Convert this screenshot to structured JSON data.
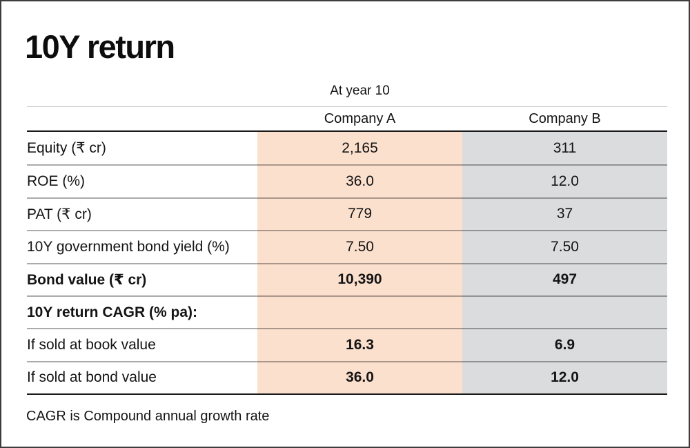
{
  "title": "10Y return",
  "table": {
    "super_header": "At year 10",
    "col_a_header": "Company A",
    "col_b_header": "Company B",
    "rows": [
      {
        "label": "Equity (₹ cr)",
        "a": "2,165",
        "b": "311"
      },
      {
        "label": "ROE (%)",
        "a": "36.0",
        "b": "12.0"
      },
      {
        "label": "PAT (₹ cr)",
        "a": "779",
        "b": "37"
      },
      {
        "label": "10Y government bond yield (%)",
        "a": "7.50",
        "b": "7.50"
      },
      {
        "label": "Bond value (₹ cr)",
        "a": "10,390",
        "b": "497"
      },
      {
        "label": "10Y return CAGR (% pa):",
        "a": "",
        "b": ""
      },
      {
        "label": "If sold at book value",
        "a": "16.3",
        "b": "6.9"
      },
      {
        "label": "If sold at bond value",
        "a": "36.0",
        "b": "12.0"
      }
    ]
  },
  "footnote": "CAGR is Compound annual growth rate",
  "colors": {
    "company_a_column_bg": "#fce0ce",
    "company_b_column_bg": "#dbdcde",
    "header_rule_black": "#1a1a1a",
    "row_divider_gray": "#a8a8a8",
    "super_header_rule_light": "#c9c9c9",
    "text": "#141414"
  },
  "chart_data": {
    "type": "table",
    "title": "10Y return",
    "super_header": "At year 10",
    "columns": [
      "",
      "Company A",
      "Company B"
    ],
    "rows": [
      [
        "Equity (₹ cr)",
        "2,165",
        "311"
      ],
      [
        "ROE (%)",
        "36.0",
        "12.0"
      ],
      [
        "PAT (₹ cr)",
        "779",
        "37"
      ],
      [
        "10Y government bond yield (%)",
        "7.50",
        "7.50"
      ],
      [
        "Bond value (₹ cr)",
        "10,390",
        "497"
      ],
      [
        "10Y return CAGR (% pa):",
        "",
        ""
      ],
      [
        "If sold at book value",
        "16.3",
        "6.9"
      ],
      [
        "If sold at bond value",
        "36.0",
        "12.0"
      ]
    ],
    "bold_rows": [
      "Bond value (₹ cr)",
      "10Y return CAGR (% pa):"
    ],
    "bold_value_rows": [
      "Bond value (₹ cr)",
      "If sold at book value",
      "If sold at bond value"
    ],
    "footnote": "CAGR is Compound annual growth rate",
    "layout": {
      "company_a_highlight": "#fce0ce",
      "company_b_highlight": "#dbdcde",
      "grid": "horizontal rules only"
    }
  }
}
